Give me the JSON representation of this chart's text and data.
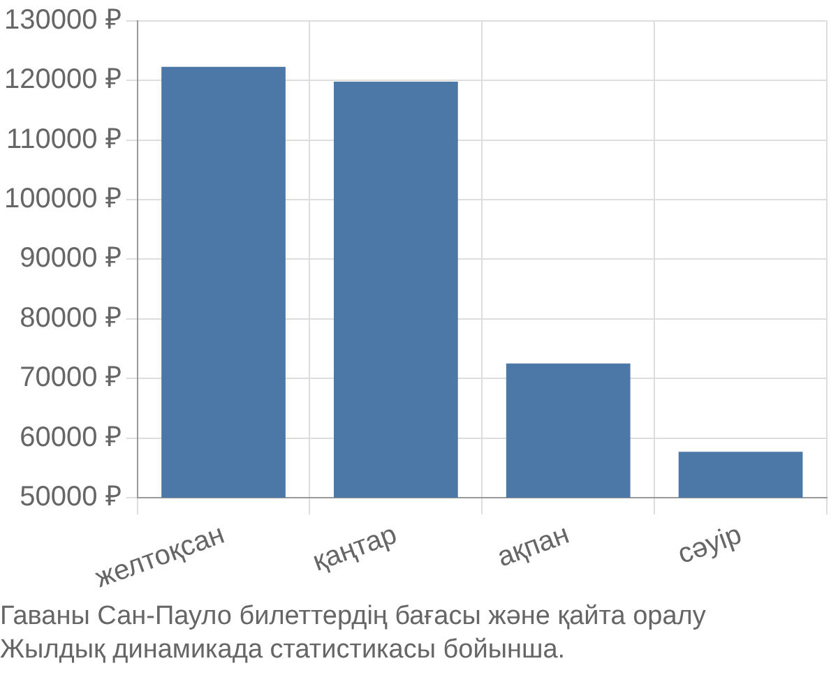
{
  "chart_data": {
    "type": "bar",
    "categories": [
      "желтоқсан",
      "қаңтар",
      "ақпан",
      "сәуір"
    ],
    "values": [
      122300,
      119800,
      72500,
      57700
    ],
    "color": "#4c78a8",
    "ylim": [
      50000,
      130000
    ],
    "yticks": [
      {
        "value": 50000,
        "label": "50000 ₽"
      },
      {
        "value": 60000,
        "label": "60000 ₽"
      },
      {
        "value": 70000,
        "label": "70000 ₽"
      },
      {
        "value": 80000,
        "label": "80000 ₽"
      },
      {
        "value": 90000,
        "label": "90000 ₽"
      },
      {
        "value": 100000,
        "label": "100000 ₽"
      },
      {
        "value": 110000,
        "label": "110000 ₽"
      },
      {
        "value": 120000,
        "label": "120000 ₽"
      },
      {
        "value": 130000,
        "label": "130000 ₽"
      }
    ],
    "grid": true,
    "annotations": [
      "Гаваны Сан-Пауло билеттердің бағасы және қайта оралу",
      "Жылдық динамикада статистикасы бойынша."
    ]
  }
}
